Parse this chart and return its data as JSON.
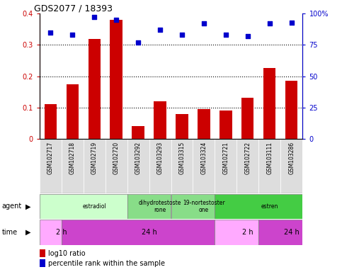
{
  "title": "GDS2077 / 18393",
  "samples": [
    "GSM102717",
    "GSM102718",
    "GSM102719",
    "GSM102720",
    "GSM103292",
    "GSM103293",
    "GSM103315",
    "GSM103324",
    "GSM102721",
    "GSM102722",
    "GSM103111",
    "GSM103286"
  ],
  "log10_ratio": [
    0.11,
    0.175,
    0.32,
    0.38,
    0.04,
    0.12,
    0.08,
    0.095,
    0.09,
    0.13,
    0.225,
    0.185
  ],
  "percentile_rank": [
    85,
    83,
    97,
    95,
    77,
    87,
    83,
    92,
    83,
    82,
    92,
    93
  ],
  "bar_color": "#cc0000",
  "dot_color": "#0000cc",
  "ylim_left": [
    0,
    0.4
  ],
  "ylim_right": [
    0,
    100
  ],
  "yticks_left": [
    0,
    0.1,
    0.2,
    0.3,
    0.4
  ],
  "yticks_right": [
    0,
    25,
    50,
    75,
    100
  ],
  "ytick_labels_left": [
    "0",
    "0.1",
    "0.2",
    "0.3",
    "0.4"
  ],
  "ytick_labels_right": [
    "0",
    "25",
    "50",
    "75",
    "100%"
  ],
  "hlines": [
    0.1,
    0.2,
    0.3
  ],
  "agent_groups": [
    {
      "label": "estradiol",
      "start": 0,
      "end": 4,
      "color": "#ccffcc"
    },
    {
      "label": "dihydrotestoste\nrone",
      "start": 4,
      "end": 6,
      "color": "#88dd88"
    },
    {
      "label": "19-nortestoster\none",
      "start": 6,
      "end": 8,
      "color": "#88dd88"
    },
    {
      "label": "estren",
      "start": 8,
      "end": 12,
      "color": "#44cc44"
    }
  ],
  "time_groups": [
    {
      "label": "2 h",
      "start": 0,
      "end": 1,
      "color": "#ffaaff"
    },
    {
      "label": "24 h",
      "start": 1,
      "end": 8,
      "color": "#cc44cc"
    },
    {
      "label": "2 h",
      "start": 8,
      "end": 10,
      "color": "#ffaaff"
    },
    {
      "label": "24 h",
      "start": 10,
      "end": 12,
      "color": "#cc44cc"
    }
  ],
  "legend_bar_label": "log10 ratio",
  "legend_dot_label": "percentile rank within the sample",
  "left_axis_color": "#cc0000",
  "right_axis_color": "#0000cc",
  "bg_color": "#ffffff",
  "xticklabel_bg": "#dddddd",
  "xticklabel_fontsize": 5.5,
  "bar_width": 0.55
}
